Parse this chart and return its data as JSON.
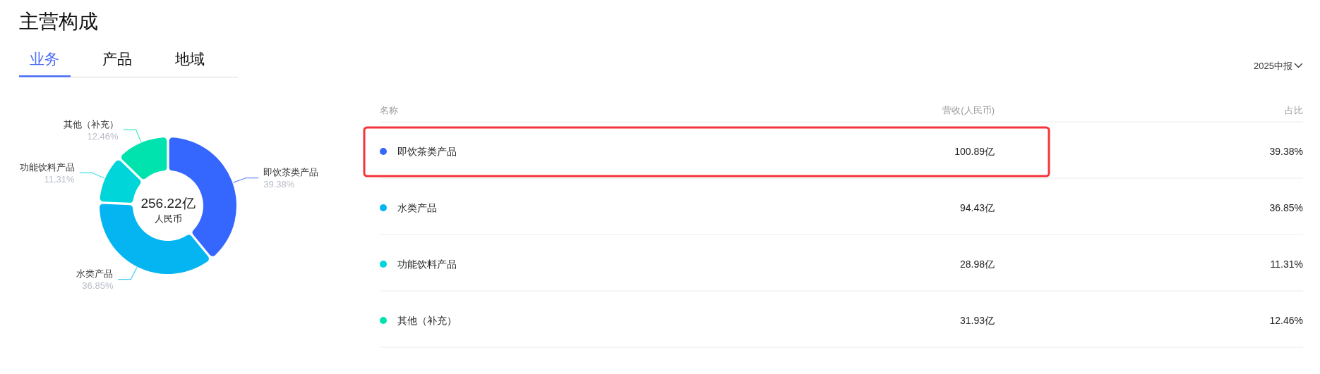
{
  "chart_data": {
    "type": "donut",
    "title": "主营构成",
    "categories": [
      "即饮茶类产品",
      "水类产品",
      "功能饮料产品",
      "其他（补充）"
    ],
    "values": [
      100.89,
      94.43,
      28.98,
      31.93
    ],
    "colors": [
      "#3567ff",
      "#04b5f2",
      "#00d6da",
      "#00e3ae"
    ],
    "value_labels": [
      "100.89亿",
      "94.43亿",
      "28.98亿",
      "31.93亿"
    ],
    "totals": [
      "256.22亿"
    ],
    "legend": "right",
    "annotations": [
      "业务",
      "产品",
      "地域",
      "2025中报",
      "名称",
      "营收(人民币)",
      "占比",
      "人民币",
      {
        "text": "39.38%",
        "x": "即饮茶类产品"
      },
      {
        "text": "36.85%",
        "x": "水类产品"
      },
      {
        "text": "11.31%",
        "x": "功能饮料产品"
      },
      {
        "text": "12.46%",
        "x": "其他（补充）"
      }
    ]
  }
}
